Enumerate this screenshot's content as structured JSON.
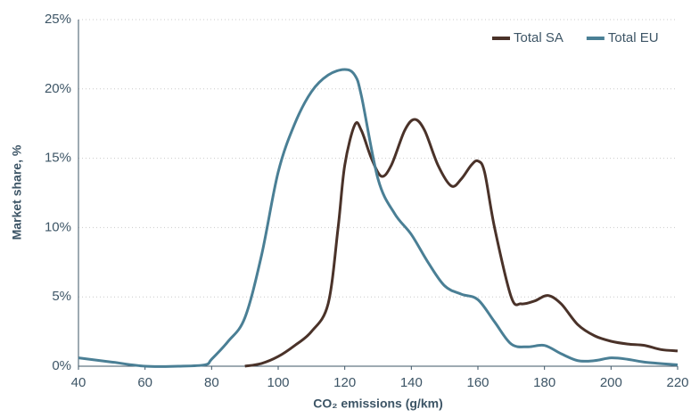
{
  "chart_data": {
    "type": "line",
    "x_label": "CO₂ emissions (g/km)",
    "y_label": "Market share, %",
    "xlim": [
      40,
      220
    ],
    "xticks": [
      40,
      60,
      80,
      100,
      120,
      140,
      160,
      180,
      200,
      220
    ],
    "ylim": [
      0,
      25
    ],
    "yticks": [
      {
        "value": 0,
        "label": "0%"
      },
      {
        "value": 5,
        "label": "5%"
      },
      {
        "value": 10,
        "label": "10%"
      },
      {
        "value": 15,
        "label": "15%"
      },
      {
        "value": 20,
        "label": "20%"
      },
      {
        "value": 25,
        "label": "25%"
      }
    ],
    "grid": true,
    "legend": "top-right",
    "series": [
      {
        "name": "Total SA",
        "color": "#4a3229",
        "x": [
          90,
          95,
          100,
          105,
          110,
          115,
          118,
          120,
          123,
          125,
          128,
          131,
          134,
          138,
          141,
          144,
          148,
          152,
          155,
          158,
          160,
          162,
          165,
          170,
          173,
          177,
          181,
          185,
          190,
          195,
          200,
          205,
          210,
          215,
          220
        ],
        "values": [
          0,
          0.2,
          0.7,
          1.5,
          2.5,
          4.5,
          10,
          14.5,
          17.4,
          17,
          15,
          13.7,
          14.5,
          17,
          17.8,
          17,
          14.5,
          13,
          13.5,
          14.5,
          14.8,
          14,
          10,
          5,
          4.5,
          4.7,
          5.1,
          4.5,
          3,
          2.2,
          1.8,
          1.6,
          1.5,
          1.2,
          1.1
        ]
      },
      {
        "name": "Total EU",
        "color": "#4a7f95",
        "x": [
          40,
          50,
          60,
          70,
          78,
          80,
          85,
          90,
          95,
          100,
          105,
          110,
          115,
          120,
          123,
          125,
          130,
          135,
          140,
          145,
          150,
          155,
          160,
          165,
          170,
          175,
          180,
          185,
          190,
          195,
          200,
          205,
          210,
          220
        ],
        "values": [
          0.6,
          0.3,
          0,
          0,
          0.1,
          0.5,
          1.8,
          3.5,
          8,
          14,
          17.5,
          19.8,
          21,
          21.4,
          21,
          19.5,
          13.5,
          11,
          9.5,
          7.5,
          5.8,
          5.2,
          4.8,
          3.2,
          1.6,
          1.4,
          1.5,
          0.9,
          0.4,
          0.4,
          0.6,
          0.5,
          0.3,
          0.1
        ]
      }
    ]
  }
}
